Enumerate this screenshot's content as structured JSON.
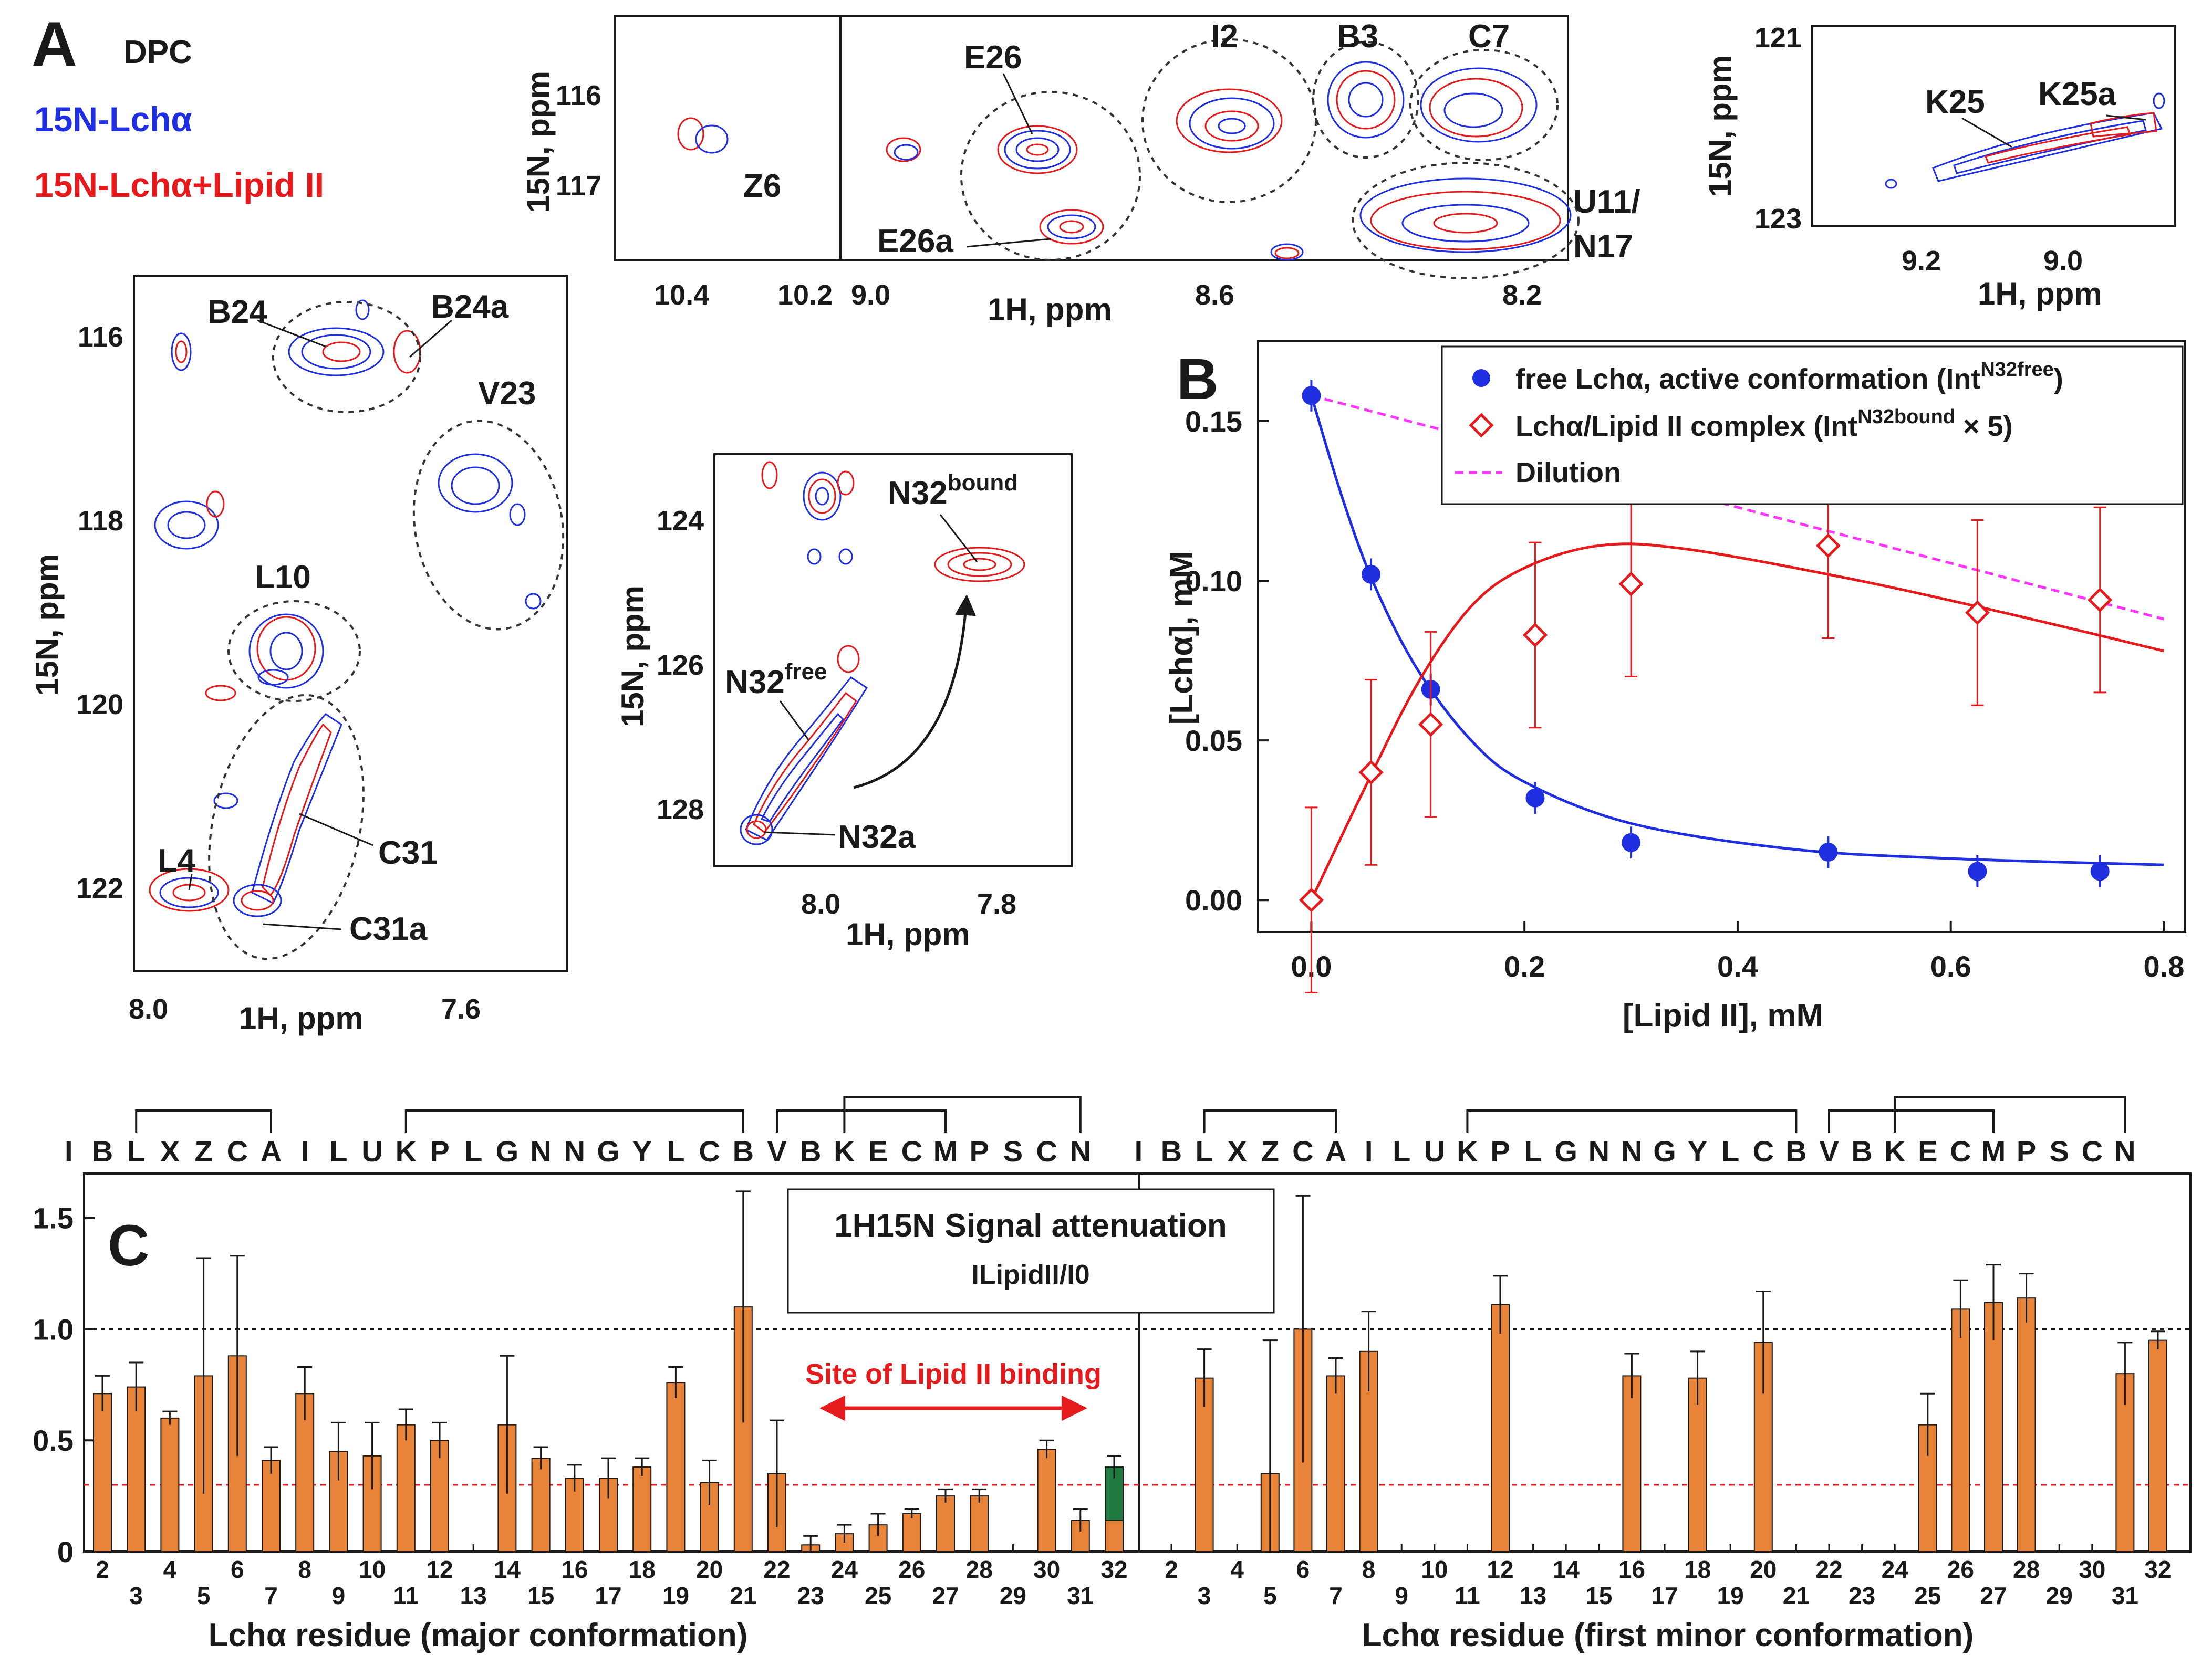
{
  "panel_labels": {
    "a": "A",
    "b": "B",
    "c": "C"
  },
  "legend_a": {
    "solvent": "DPC",
    "blue_sample": "15N-Lchα",
    "red_sample": "15N-Lchα+Lipid II"
  },
  "colors": {
    "blue": "#1f2fe0",
    "red": "#e41a1c",
    "orange": "#e8843a",
    "green": "#1f7a3f",
    "magenta": "#ff33ff",
    "ink": "#1a1a1a"
  },
  "spectra": {
    "top": {
      "xlabel": "1H, ppm",
      "ylabel": "15N, ppm",
      "x_ticks": [
        "10.4",
        "10.2",
        "9.0",
        "8.6",
        "8.2"
      ],
      "y_ticks": [
        "116",
        "117"
      ],
      "peaks": [
        "Z6",
        "E26",
        "E26a",
        "I2",
        "B3",
        "C7",
        "U11/",
        "N17"
      ]
    },
    "left": {
      "xlabel": "1H, ppm",
      "ylabel": "15N, ppm",
      "x_ticks": [
        "8.0",
        "7.6"
      ],
      "y_ticks": [
        "116",
        "118",
        "120",
        "122"
      ],
      "peaks": [
        "B24",
        "B24a",
        "V23",
        "L10",
        "C31",
        "L4",
        "C31a"
      ]
    },
    "middle": {
      "xlabel": "1H, ppm",
      "ylabel": "15N, ppm",
      "x_ticks": [
        "8.0",
        "7.8"
      ],
      "y_ticks": [
        "124",
        "126",
        "128"
      ],
      "peaks": [
        "N32",
        "bound",
        "N32",
        "free",
        "N32a"
      ]
    },
    "right": {
      "xlabel": "1H, ppm",
      "ylabel": "15N, ppm",
      "x_ticks": [
        "9.2",
        "9.0"
      ],
      "y_ticks": [
        "121",
        "123"
      ],
      "peaks": [
        "K25",
        "K25a"
      ]
    }
  },
  "chart_data": [
    {
      "type": "scatter",
      "title": "",
      "xlabel": "[Lipid II], mM",
      "ylabel": "[Lchα], mM",
      "xlim": [
        -0.05,
        0.82
      ],
      "ylim": [
        -0.01,
        0.175
      ],
      "x_ticks": [
        "0.0",
        "0.2",
        "0.4",
        "0.6",
        "0.8"
      ],
      "y_ticks": [
        "0.00",
        "0.05",
        "0.10",
        "0.15"
      ],
      "legend_position": "top-right",
      "series": [
        {
          "name": "free Lchα, active conformation (Int",
          "name_sup": "N32free",
          "name_end": ")",
          "x": [
            0.0,
            0.056,
            0.112,
            0.21,
            0.3,
            0.485,
            0.625,
            0.74
          ],
          "y": [
            0.158,
            0.102,
            0.066,
            0.032,
            0.018,
            0.015,
            0.009,
            0.009
          ],
          "err": [
            0.005,
            0.005,
            0.005,
            0.005,
            0.005,
            0.005,
            0.005,
            0.005
          ]
        },
        {
          "name": "Lchα/Lipid II complex (Int",
          "name_sup": "N32bound",
          "name_end": " × 5)",
          "x": [
            0.0,
            0.056,
            0.112,
            0.21,
            0.3,
            0.485,
            0.625,
            0.74
          ],
          "y": [
            0.0,
            0.04,
            0.055,
            0.083,
            0.099,
            0.111,
            0.09,
            0.094
          ],
          "err": [
            0.029,
            0.029,
            0.029,
            0.029,
            0.029,
            0.029,
            0.029,
            0.029
          ]
        },
        {
          "name": "Dilution",
          "x": [
            0.0,
            0.8
          ],
          "y": [
            0.158,
            0.088
          ]
        }
      ]
    },
    {
      "type": "bar",
      "title": "1H15N Signal attenuation",
      "subtitle": "ILipidII/I0",
      "ylabel": "",
      "ylim": [
        0,
        1.7
      ],
      "y_ticks": [
        "0",
        "0.5",
        "1.0",
        "1.5"
      ],
      "reference_lines": [
        1.0,
        0.3
      ],
      "annotation": "Site of Lipid II binding",
      "sequence": [
        "I",
        "B",
        "L",
        "X",
        "Z",
        "C",
        "A",
        "I",
        "L",
        "U",
        "K",
        "P",
        "L",
        "G",
        "N",
        "N",
        "G",
        "Y",
        "L",
        "C",
        "B",
        "V",
        "B",
        "K",
        "E",
        "C",
        "M",
        "P",
        "S",
        "C",
        "N"
      ],
      "groups": [
        {
          "xlabel": "Lchα residue (major conformation)",
          "categories": [
            2,
            3,
            4,
            5,
            6,
            7,
            8,
            9,
            10,
            11,
            12,
            13,
            14,
            15,
            16,
            17,
            18,
            19,
            20,
            21,
            22,
            23,
            24,
            25,
            26,
            27,
            28,
            29,
            30,
            31,
            32
          ],
          "values": [
            0.71,
            0.74,
            0.6,
            0.79,
            0.88,
            0.41,
            0.71,
            0.45,
            0.43,
            0.57,
            0.5,
            null,
            0.57,
            0.42,
            0.33,
            0.33,
            0.38,
            0.76,
            0.31,
            1.1,
            0.35,
            0.03,
            0.08,
            0.12,
            0.17,
            0.25,
            0.25,
            null,
            0.46,
            0.14,
            0.38
          ],
          "errors": [
            0.08,
            0.11,
            0.03,
            0.53,
            0.45,
            0.06,
            0.12,
            0.13,
            0.15,
            0.07,
            0.08,
            null,
            0.31,
            0.05,
            0.06,
            0.09,
            0.04,
            0.07,
            0.1,
            0.52,
            0.24,
            0.04,
            0.04,
            0.05,
            0.02,
            0.03,
            0.03,
            null,
            0.04,
            0.05,
            0.05
          ]
        },
        {
          "xlabel": "Lchα residue (first minor conformation)",
          "categories": [
            2,
            3,
            4,
            5,
            6,
            7,
            8,
            9,
            10,
            11,
            12,
            13,
            14,
            15,
            16,
            17,
            18,
            19,
            20,
            21,
            22,
            23,
            24,
            25,
            26,
            27,
            28,
            29,
            30,
            31,
            32
          ],
          "values": [
            null,
            0.78,
            null,
            0.35,
            1.0,
            0.79,
            0.9,
            null,
            null,
            null,
            1.11,
            null,
            null,
            null,
            0.79,
            null,
            0.78,
            null,
            0.94,
            null,
            null,
            null,
            null,
            0.57,
            1.09,
            1.12,
            1.14,
            null,
            null,
            0.8,
            0.95
          ],
          "errors": [
            null,
            0.13,
            null,
            0.6,
            0.6,
            0.08,
            0.18,
            null,
            null,
            null,
            0.13,
            null,
            null,
            null,
            0.1,
            null,
            0.12,
            null,
            0.23,
            null,
            null,
            null,
            null,
            0.14,
            0.13,
            0.17,
            0.11,
            null,
            null,
            0.14,
            0.04
          ]
        }
      ]
    }
  ]
}
